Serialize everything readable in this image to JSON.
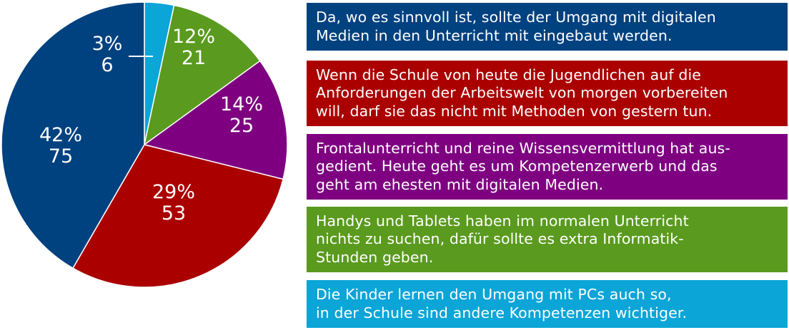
{
  "chart_data": {
    "type": "pie",
    "series": [
      {
        "name": "",
        "slices": [
          {
            "percent_label": "3%",
            "count_label": "6",
            "value": 6,
            "color": "#0ba5d8"
          },
          {
            "percent_label": "12%",
            "count_label": "21",
            "value": 21,
            "color": "#5a9a1e"
          },
          {
            "percent_label": "14%",
            "count_label": "25",
            "value": 25,
            "color": "#7e0081"
          },
          {
            "percent_label": "29%",
            "count_label": "53",
            "value": 53,
            "color": "#aa0000"
          },
          {
            "percent_label": "42%",
            "count_label": "75",
            "value": 75,
            "color": "#00417f"
          }
        ]
      }
    ],
    "legend": [
      {
        "lines": [
          "Da, wo es sinnvoll ist, sollte der Umgang mit digitalen",
          "Medien in den Unterricht mit eingebaut werden."
        ],
        "color": "#00417f"
      },
      {
        "lines": [
          "Wenn die Schule von heute die Jugendlichen auf die",
          "Anforderungen der Arbeitswelt von morgen vorbereiten",
          "will, darf sie das nicht mit Methoden von gestern tun."
        ],
        "color": "#aa0000"
      },
      {
        "lines": [
          "Frontalunterricht und reine Wissensvermittlung hat aus-",
          "gedient. Heute geht es um Kompetenzerwerb und das",
          "geht am ehesten mit digitalen Medien."
        ],
        "color": "#7e0081"
      },
      {
        "lines": [
          "Handys und Tablets haben im normalen Unterricht",
          "nichts zu suchen, dafür sollte es extra Informatik-",
          "Stunden geben."
        ],
        "color": "#5a9a1e"
      },
      {
        "lines": [
          "Die Kinder lernen den Umgang mit PCs auch so,",
          "in der Schule sind andere Kompetenzen wichtiger."
        ],
        "color": "#0ba5d8"
      }
    ],
    "legend_placement": "right"
  }
}
